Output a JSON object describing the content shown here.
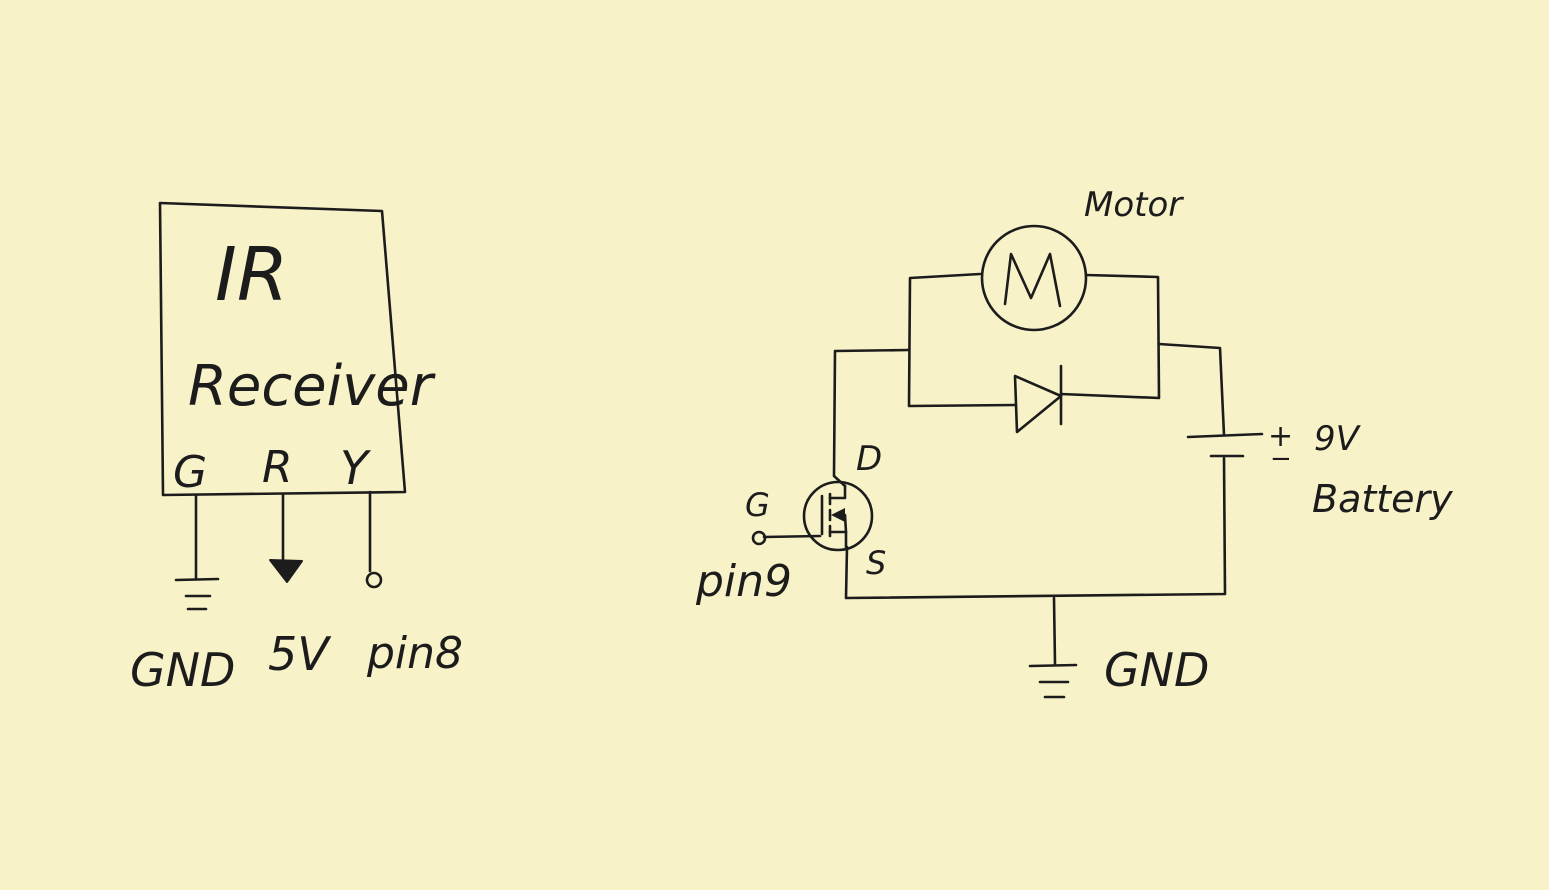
{
  "ir_receiver": {
    "title_line1": "IR",
    "title_line2": "Receiver",
    "pins": [
      "G",
      "R",
      "Y"
    ],
    "connections": [
      "GND",
      "5V",
      "pin8"
    ]
  },
  "motor_circuit": {
    "motor_label": "Motor",
    "motor_symbol": "M",
    "mosfet_drain": "D",
    "mosfet_gate": "G",
    "mosfet_source": "S",
    "gate_pin": "pin9",
    "battery_plus": "+",
    "battery_minus": "−",
    "battery_voltage": "9V",
    "battery_label": "Battery",
    "ground_label": "GND"
  },
  "colors": {
    "paper": "#f8f2c8",
    "ink": "#1c1c1c"
  }
}
